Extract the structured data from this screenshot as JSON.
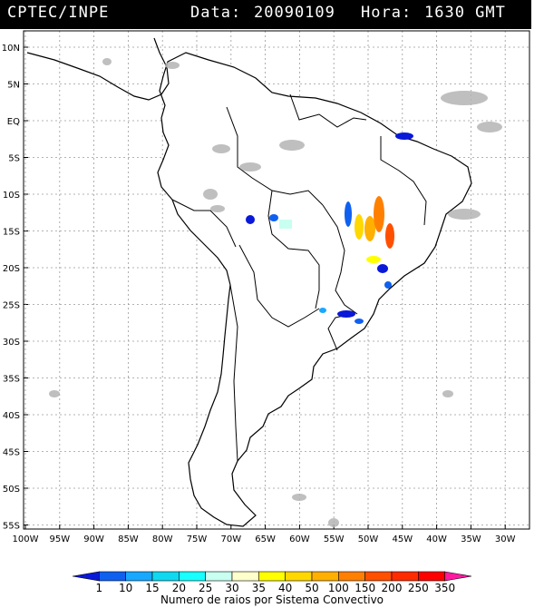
{
  "header": {
    "source": "CPTEC/INPE",
    "data_label": "Data:",
    "date": "20090109",
    "hora_label": "Hora:",
    "time": "1630 GMT"
  },
  "map": {
    "lat_labels": [
      "10N",
      "5N",
      "EQ",
      "5S",
      "10S",
      "15S",
      "20S",
      "25S",
      "30S",
      "35S",
      "40S",
      "45S",
      "50S",
      "55S"
    ],
    "lon_labels": [
      "100W",
      "95W",
      "90W",
      "85W",
      "80W",
      "75W",
      "70W",
      "65W",
      "60W",
      "55W",
      "50W",
      "45W",
      "40W",
      "35W",
      "30W"
    ]
  },
  "legend": {
    "values": [
      "1",
      "10",
      "15",
      "20",
      "25",
      "30",
      "35",
      "40",
      "50",
      "100",
      "150",
      "200",
      "250",
      "350"
    ],
    "title": "Numero de raios por Sistema Convectivo",
    "colors": [
      "#0a18d8",
      "#1060f0",
      "#18a8ff",
      "#10d8f0",
      "#18ffff",
      "#c8fff0",
      "#ffffcc",
      "#ffff00",
      "#ffd800",
      "#ffb000",
      "#ff8000",
      "#ff5000",
      "#ff2c00",
      "#ff0000",
      "#ff18a0"
    ]
  }
}
